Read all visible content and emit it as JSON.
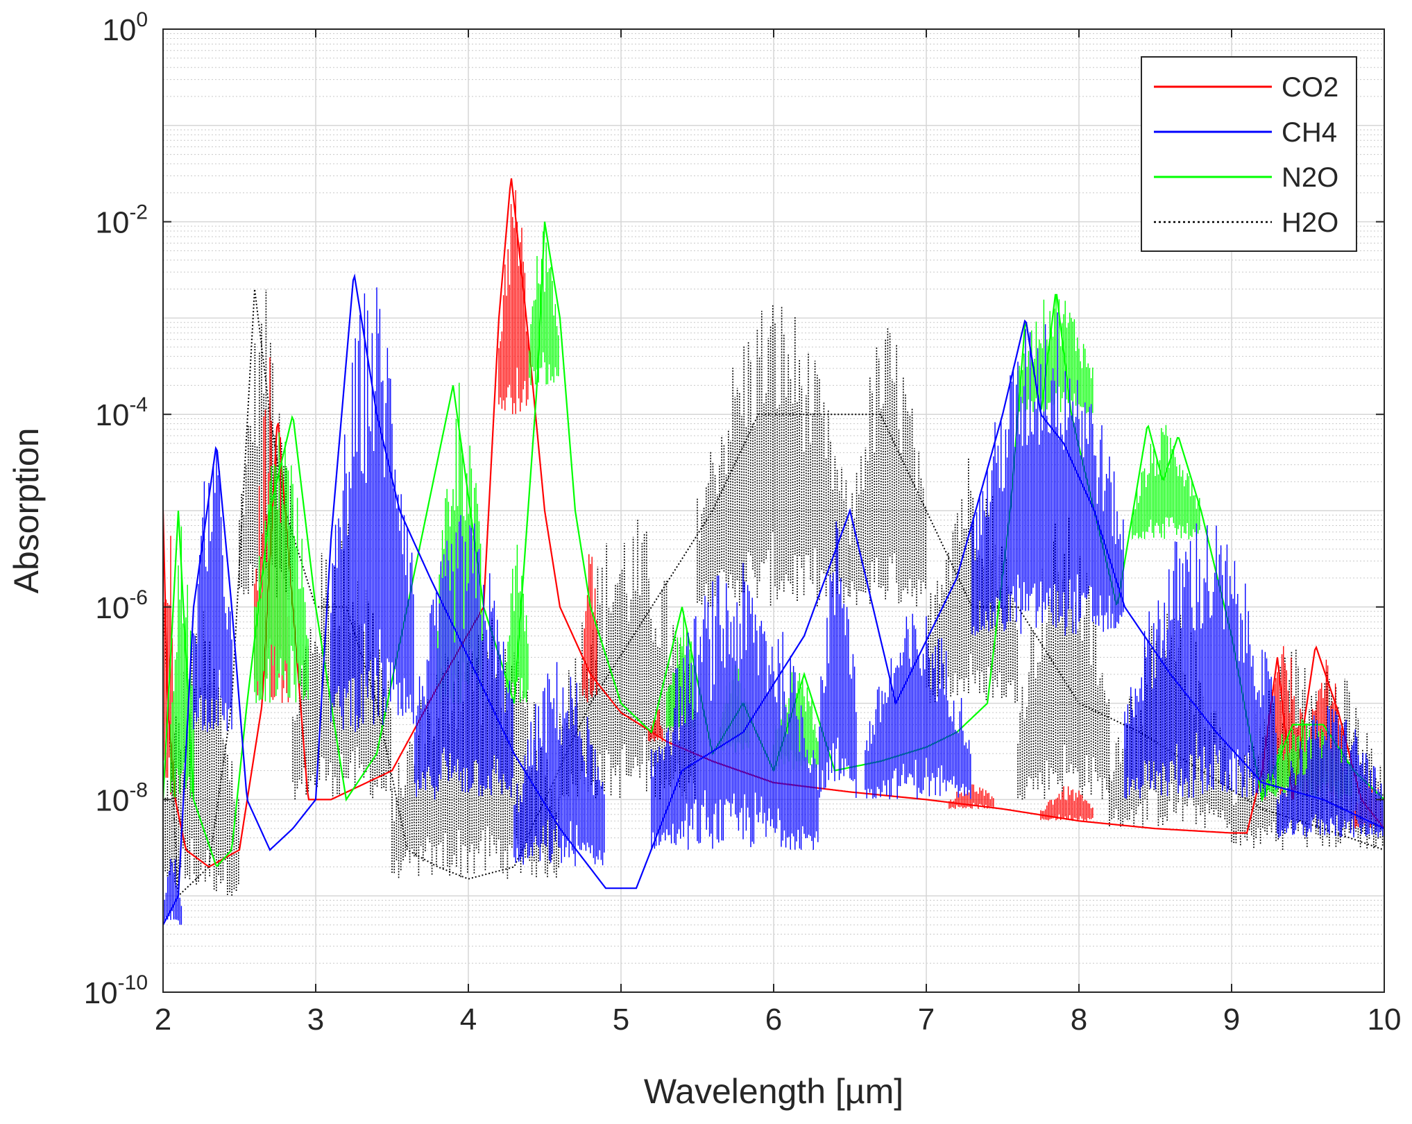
{
  "chart_data": {
    "type": "line",
    "title": "",
    "xlabel": "Wavelength [µm]",
    "ylabel": "Absorption",
    "xlim": [
      2,
      10
    ],
    "ylim": [
      1e-10,
      1
    ],
    "yscale": "log",
    "grid": true,
    "minor_grid": true,
    "legend_position": "top-right",
    "x_ticks": [
      "2",
      "3",
      "4",
      "5",
      "6",
      "7",
      "8",
      "9",
      "10"
    ],
    "y_ticks": [
      {
        "base": "10",
        "exp": "-10"
      },
      {
        "base": "10",
        "exp": "-8"
      },
      {
        "base": "10",
        "exp": "-6"
      },
      {
        "base": "10",
        "exp": "-4"
      },
      {
        "base": "10",
        "exp": "-2"
      },
      {
        "base": "10",
        "exp": "0"
      }
    ],
    "series": [
      {
        "name": "CO2",
        "color": "#ff0000",
        "style": "solid",
        "baseline": [
          [
            2.0,
            1e-05
          ],
          [
            2.03,
            1e-07
          ],
          [
            2.08,
            1e-08
          ],
          [
            2.15,
            3e-09
          ],
          [
            2.3,
            2e-09
          ],
          [
            2.5,
            3e-09
          ],
          [
            2.65,
            1e-07
          ],
          [
            2.75,
            0.0001
          ],
          [
            2.85,
            1e-06
          ],
          [
            2.95,
            1e-08
          ],
          [
            3.1,
            1e-08
          ],
          [
            3.5,
            2e-08
          ],
          [
            3.8,
            1.5e-07
          ],
          [
            4.1,
            1e-06
          ],
          [
            4.2,
            0.001
          ],
          [
            4.28,
            0.03
          ],
          [
            4.38,
            0.001
          ],
          [
            4.5,
            1e-05
          ],
          [
            4.6,
            1e-06
          ],
          [
            4.8,
            2e-07
          ],
          [
            5.0,
            8e-08
          ],
          [
            5.3,
            4e-08
          ],
          [
            5.6,
            2.5e-08
          ],
          [
            6.0,
            1.5e-08
          ],
          [
            6.5,
            1.2e-08
          ],
          [
            7.0,
            1e-08
          ],
          [
            7.5,
            8e-09
          ],
          [
            8.0,
            6e-09
          ],
          [
            8.5,
            5e-09
          ],
          [
            9.0,
            4.5e-09
          ],
          [
            9.1,
            4.5e-09
          ],
          [
            9.2,
            2e-08
          ],
          [
            9.3,
            3e-07
          ],
          [
            9.4,
            1e-08
          ],
          [
            9.55,
            4e-07
          ],
          [
            9.7,
            8e-08
          ],
          [
            9.85,
            1e-08
          ],
          [
            10.0,
            5e-09
          ]
        ],
        "bands": [
          [
            2.0,
            2.07,
            1e-08,
            2e-05
          ],
          [
            2.6,
            2.82,
            1e-07,
            0.0005
          ],
          [
            4.2,
            4.4,
            0.0001,
            0.03
          ],
          [
            4.75,
            4.85,
            1e-07,
            5e-06
          ],
          [
            5.18,
            5.28,
            4e-08,
            1e-07
          ],
          [
            7.15,
            7.45,
            8e-09,
            1.5e-08
          ],
          [
            7.75,
            8.1,
            6e-09,
            1.4e-08
          ],
          [
            9.2,
            9.5,
            1e-08,
            4e-07
          ],
          [
            9.5,
            9.75,
            1e-08,
            4e-07
          ],
          [
            9.8,
            10.0,
            5e-09,
            2e-08
          ]
        ]
      },
      {
        "name": "CH4",
        "color": "#0000ff",
        "style": "solid",
        "baseline": [
          [
            2.0,
            5e-10
          ],
          [
            2.1,
            1e-09
          ],
          [
            2.2,
            1e-06
          ],
          [
            2.35,
            5e-05
          ],
          [
            2.45,
            1e-06
          ],
          [
            2.55,
            1e-08
          ],
          [
            2.7,
            3e-09
          ],
          [
            2.85,
            5e-09
          ],
          [
            3.0,
            1e-08
          ],
          [
            3.1,
            5e-06
          ],
          [
            3.25,
            0.003
          ],
          [
            3.4,
            0.0001
          ],
          [
            3.55,
            1e-05
          ],
          [
            3.75,
            2e-06
          ],
          [
            4.0,
            3e-07
          ],
          [
            4.3,
            3e-08
          ],
          [
            4.6,
            5e-09
          ],
          [
            4.9,
            1.2e-09
          ],
          [
            5.1,
            1.2e-09
          ],
          [
            5.4,
            2e-08
          ],
          [
            5.8,
            5e-08
          ],
          [
            6.2,
            5e-07
          ],
          [
            6.5,
            1e-05
          ],
          [
            6.8,
            1e-07
          ],
          [
            7.2,
            2e-06
          ],
          [
            7.5,
            0.0001
          ],
          [
            7.65,
            0.001
          ],
          [
            7.75,
            0.0001
          ],
          [
            7.9,
            5e-05
          ],
          [
            8.1,
            1e-05
          ],
          [
            8.3,
            1e-06
          ],
          [
            8.6,
            2e-07
          ],
          [
            8.9,
            5e-08
          ],
          [
            9.2,
            1.5e-08
          ],
          [
            9.6,
            1e-08
          ],
          [
            10.0,
            5e-09
          ]
        ],
        "bands": [
          [
            2.0,
            2.12,
            5e-10,
            3e-09
          ],
          [
            2.2,
            2.45,
            5e-08,
            6e-05
          ],
          [
            3.1,
            3.65,
            5e-08,
            0.003
          ],
          [
            3.65,
            4.3,
            1e-08,
            1e-05
          ],
          [
            4.3,
            4.9,
            2e-09,
            3e-07
          ],
          [
            5.2,
            6.3,
            3e-09,
            3e-06
          ],
          [
            6.3,
            6.55,
            1e-08,
            1e-05
          ],
          [
            6.6,
            7.3,
            1e-08,
            1e-06
          ],
          [
            7.3,
            8.3,
            5e-07,
            0.0015
          ],
          [
            8.3,
            9.3,
            1e-08,
            1e-05
          ],
          [
            9.3,
            10.0,
            4e-09,
            1e-07
          ]
        ]
      },
      {
        "name": "N2O",
        "color": "#00ff00",
        "style": "solid",
        "baseline": [
          [
            2.0,
            1e-08
          ],
          [
            2.1,
            1e-05
          ],
          [
            2.2,
            1e-08
          ],
          [
            2.35,
            2e-09
          ],
          [
            2.45,
            3e-09
          ],
          [
            2.55,
            1e-07
          ],
          [
            2.7,
            1e-05
          ],
          [
            2.85,
            0.0001
          ],
          [
            3.0,
            1e-06
          ],
          [
            3.2,
            1e-08
          ],
          [
            3.4,
            3e-08
          ],
          [
            3.6,
            1e-06
          ],
          [
            3.9,
            0.0002
          ],
          [
            4.1,
            1e-06
          ],
          [
            4.3,
            1e-07
          ],
          [
            4.45,
            0.0002
          ],
          [
            4.5,
            0.01
          ],
          [
            4.6,
            0.001
          ],
          [
            4.7,
            1e-05
          ],
          [
            4.8,
            1e-06
          ],
          [
            5.0,
            1e-07
          ],
          [
            5.2,
            5e-08
          ],
          [
            5.4,
            1e-06
          ],
          [
            5.6,
            3e-08
          ],
          [
            5.8,
            1e-07
          ],
          [
            6.0,
            2e-08
          ],
          [
            6.2,
            2e-07
          ],
          [
            6.4,
            2e-08
          ],
          [
            6.7,
            2.5e-08
          ],
          [
            7.0,
            3.5e-08
          ],
          [
            7.2,
            5e-08
          ],
          [
            7.4,
            1e-07
          ],
          [
            7.55,
            1e-05
          ],
          [
            7.65,
            0.001
          ],
          [
            7.75,
            0.0001
          ],
          [
            7.85,
            0.002
          ],
          [
            7.95,
            0.0001
          ],
          [
            8.1,
            1e-05
          ],
          [
            8.25,
            1e-06
          ],
          [
            8.45,
            8e-05
          ],
          [
            8.55,
            2e-05
          ],
          [
            8.65,
            6e-05
          ],
          [
            8.8,
            1e-05
          ],
          [
            9.0,
            5e-07
          ],
          [
            9.2,
            1e-08
          ],
          [
            9.4,
            6e-08
          ],
          [
            9.6,
            6e-08
          ],
          [
            9.8,
            2e-08
          ],
          [
            10.0,
            1e-08
          ]
        ],
        "bands": [
          [
            2.05,
            2.2,
            1e-08,
            1e-05
          ],
          [
            2.6,
            2.95,
            1e-07,
            0.0001
          ],
          [
            3.8,
            4.1,
            1e-07,
            0.0003
          ],
          [
            4.25,
            4.4,
            1e-07,
            5e-06
          ],
          [
            4.4,
            4.6,
            0.0002,
            0.01
          ],
          [
            5.3,
            5.5,
            5e-08,
            1e-06
          ],
          [
            5.65,
            5.85,
            3e-08,
            3e-07
          ],
          [
            6.0,
            6.3,
            2e-08,
            3e-07
          ],
          [
            7.6,
            8.1,
            0.0001,
            0.002
          ],
          [
            8.35,
            8.8,
            5e-06,
            8e-05
          ],
          [
            9.2,
            9.8,
            1e-08,
            8e-08
          ]
        ]
      },
      {
        "name": "H2O",
        "color": "#000000",
        "style": "dotted",
        "baseline": [
          [
            2.0,
            1e-06
          ],
          [
            2.1,
            1e-09
          ],
          [
            2.3,
            2e-09
          ],
          [
            2.45,
            1e-07
          ],
          [
            2.6,
            0.002
          ],
          [
            2.7,
            0.0001
          ],
          [
            2.8,
            1e-05
          ],
          [
            3.0,
            1e-06
          ],
          [
            3.2,
            1e-06
          ],
          [
            3.4,
            1e-07
          ],
          [
            3.6,
            3e-09
          ],
          [
            3.8,
            2e-09
          ],
          [
            4.0,
            1.5e-09
          ],
          [
            4.3,
            2e-09
          ],
          [
            4.5,
            1e-08
          ],
          [
            4.8,
            1e-07
          ],
          [
            5.2,
            1e-06
          ],
          [
            5.6,
            1e-05
          ],
          [
            5.9,
            0.0001
          ],
          [
            6.2,
            0.0001
          ],
          [
            6.5,
            0.0001
          ],
          [
            6.7,
            0.0001
          ],
          [
            7.0,
            1e-05
          ],
          [
            7.3,
            1e-06
          ],
          [
            7.6,
            1e-06
          ],
          [
            8.0,
            1e-07
          ],
          [
            8.4,
            5e-08
          ],
          [
            8.8,
            2e-08
          ],
          [
            9.2,
            8e-09
          ],
          [
            9.6,
            5e-09
          ],
          [
            10.0,
            3e-09
          ]
        ],
        "bands": [
          [
            2.0,
            2.5,
            1e-09,
            1e-06
          ],
          [
            2.5,
            2.85,
            1e-06,
            0.002
          ],
          [
            2.85,
            3.5,
            1e-08,
            1e-05
          ],
          [
            3.5,
            4.6,
            1.5e-09,
            1e-06
          ],
          [
            4.6,
            5.5,
            1e-08,
            1e-05
          ],
          [
            5.5,
            6.5,
            1e-06,
            0.002
          ],
          [
            6.5,
            7.0,
            1e-06,
            0.001
          ],
          [
            7.0,
            7.6,
            1e-07,
            5e-05
          ],
          [
            7.6,
            8.2,
            1e-08,
            1e-05
          ],
          [
            8.2,
            9.0,
            5e-09,
            1e-06
          ],
          [
            9.0,
            10.0,
            3e-09,
            5e-07
          ]
        ]
      }
    ]
  }
}
